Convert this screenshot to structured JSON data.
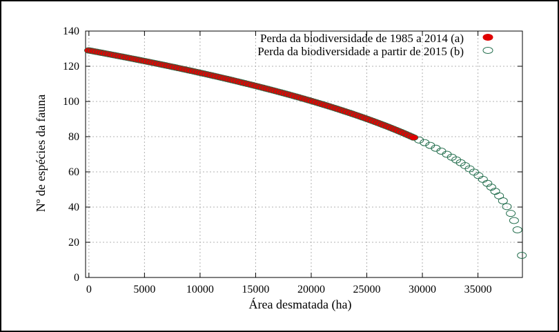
{
  "chart_data": {
    "type": "scatter",
    "xlabel": "Área desmatada (ha)",
    "ylabel": "Nº de espécies da fauna",
    "xlim": [
      -300,
      39000
    ],
    "ylim": [
      0,
      140
    ],
    "x_ticks": [
      "0",
      "5000",
      "10000",
      "15000",
      "20000",
      "25000",
      "30000",
      "35000"
    ],
    "y_ticks": [
      "0",
      "20",
      "40",
      "60",
      "80",
      "100",
      "120",
      "140"
    ],
    "grid": true,
    "legend_position": "top-right",
    "curve": {
      "S0": 129,
      "x_max": 39000,
      "exponent": 0.35
    },
    "series": [
      {
        "name": "Perda da biodiversidade de 1985 a 2014 (a)",
        "marker": "filled-circle",
        "color": "#e00000",
        "edge_color": "#1f6b4a",
        "x_range": [
          0,
          29300
        ],
        "step": 230
      },
      {
        "name": "Perda da biodiversidade a partir de 2015 (b)",
        "marker": "open-circle",
        "color": "#1f6b4a",
        "x_points": [
          29700,
          30200,
          30700,
          31200,
          31700,
          32200,
          32650,
          33050,
          33450,
          33850,
          34250,
          34650,
          35050,
          35450,
          35850,
          36200,
          36550,
          36900,
          37250,
          37600,
          37950,
          38250,
          38550,
          38950
        ]
      }
    ]
  }
}
